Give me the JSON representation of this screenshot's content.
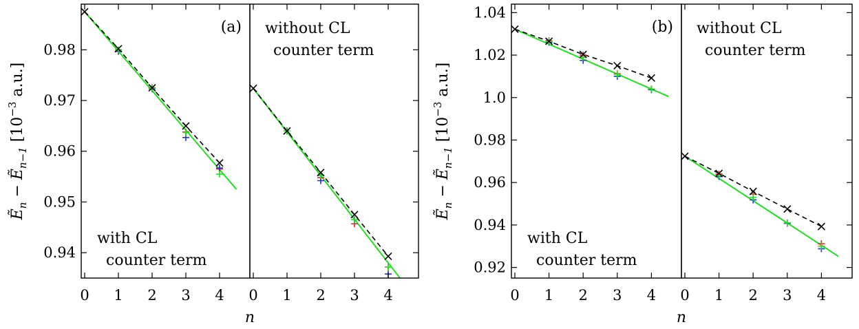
{
  "figure": {
    "ylabel": "Ẽn − Ẽn−1 [10−3 a.u.]",
    "ylabel_parts": {
      "e1": "Ẽ",
      "sub1": "n",
      "minus": " − ",
      "e2": "Ẽ",
      "sub2": "n−1",
      "units_pre": " [10",
      "exp": "−3",
      "units_post": " a.u.]"
    }
  },
  "chart_data": [
    {
      "type": "line",
      "panel_label": "(a)",
      "annotation_lines": [
        "with CL",
        "counter term"
      ],
      "xlabel": "n",
      "xlim": [
        0,
        4.5
      ],
      "ylim": [
        0.935,
        0.989
      ],
      "x_ticks": [
        0,
        1,
        2,
        3,
        4
      ],
      "y_ticks": [
        0.94,
        0.95,
        0.96,
        0.97,
        0.98
      ],
      "y_tick_labels": [
        "0.94",
        "0.95",
        "0.96",
        "0.97",
        "0.98"
      ],
      "green_fit": {
        "x": [
          0,
          4.5
        ],
        "y": [
          0.9875,
          0.9525
        ]
      },
      "series": [
        {
          "marker": "x",
          "color": "#000000",
          "dashed": true,
          "x": [
            0,
            1,
            2,
            3,
            4
          ],
          "y": [
            0.9875,
            0.9802,
            0.9725,
            0.965,
            0.9577
          ]
        },
        {
          "marker": "+",
          "color": "#e8242a",
          "x": [
            1,
            2,
            3,
            4
          ],
          "y": [
            0.9797,
            0.9725,
            0.9638,
            0.9565
          ]
        },
        {
          "marker": "+",
          "color": "#2233cc",
          "x": [
            1,
            2,
            3,
            4
          ],
          "y": [
            0.9797,
            0.9723,
            0.9627,
            0.9567
          ]
        },
        {
          "marker": "+",
          "color": "#22dd22",
          "x": [
            1,
            2,
            3,
            4
          ],
          "y": [
            0.98,
            0.9724,
            0.9637,
            0.9555
          ]
        }
      ]
    },
    {
      "type": "line",
      "annotation_lines": [
        "without CL",
        "counter term"
      ],
      "xlim": [
        0,
        4.5
      ],
      "x_ticks": [
        0,
        1,
        2,
        3,
        4
      ],
      "ylim": [
        0.935,
        0.989
      ],
      "green_fit": {
        "x": [
          0,
          4.5
        ],
        "y": [
          0.9724,
          0.9337
        ]
      },
      "series": [
        {
          "marker": "x",
          "color": "#000000",
          "dashed": true,
          "x": [
            0,
            1,
            2,
            3,
            4
          ],
          "y": [
            0.9724,
            0.964,
            0.9558,
            0.9475,
            0.9393
          ]
        },
        {
          "marker": "+",
          "color": "#e8242a",
          "x": [
            1,
            2,
            3,
            4
          ],
          "y": [
            0.964,
            0.9548,
            0.9457,
            0.9372
          ]
        },
        {
          "marker": "+",
          "color": "#2233cc",
          "x": [
            1,
            2,
            3,
            4
          ],
          "y": [
            0.964,
            0.9542,
            0.9465,
            0.9358
          ]
        },
        {
          "marker": "+",
          "color": "#22dd22",
          "x": [
            1,
            2,
            3,
            4
          ],
          "y": [
            0.964,
            0.9552,
            0.9465,
            0.9372
          ]
        }
      ]
    },
    {
      "type": "line",
      "panel_label": "(b)",
      "annotation_lines": [
        "with CL",
        "counter term"
      ],
      "xlabel": "n",
      "xlim": [
        0,
        4.5
      ],
      "x_ticks": [
        0,
        1,
        2,
        3,
        4
      ],
      "ylim": [
        0.915,
        1.044
      ],
      "y_ticks": [
        0.92,
        0.94,
        0.96,
        0.98,
        1.0,
        1.02,
        1.04
      ],
      "y_tick_labels": [
        "0.92",
        "0.94",
        "0.96",
        "0.98",
        "1.0",
        "1.02",
        "1.04"
      ],
      "green_fit": {
        "x": [
          0,
          4.5
        ],
        "y": [
          1.0322,
          1.0005
        ]
      },
      "series": [
        {
          "marker": "x",
          "color": "#000000",
          "dashed": true,
          "x": [
            0,
            1,
            2,
            3,
            4
          ],
          "y": [
            1.0322,
            1.0265,
            1.0203,
            1.015,
            1.0092
          ]
        },
        {
          "marker": "+",
          "color": "#e8242a",
          "x": [
            1,
            2,
            3,
            4
          ],
          "y": [
            1.0268,
            1.02,
            1.0112,
            1.004
          ]
        },
        {
          "marker": "+",
          "color": "#2233cc",
          "x": [
            1,
            2,
            3,
            4
          ],
          "y": [
            1.026,
            1.0175,
            1.01,
            1.0037
          ]
        },
        {
          "marker": "+",
          "color": "#22dd22",
          "x": [
            1,
            2,
            3,
            4
          ],
          "y": [
            1.0265,
            1.019,
            1.011,
            1.004
          ]
        }
      ]
    },
    {
      "type": "line",
      "annotation_lines": [
        "without CL",
        "counter term"
      ],
      "xlim": [
        0,
        4.5
      ],
      "x_ticks": [
        0,
        1,
        2,
        3,
        4
      ],
      "ylim": [
        0.915,
        1.044
      ],
      "green_fit": {
        "x": [
          0,
          4.5
        ],
        "y": [
          0.9724,
          0.9252
        ]
      },
      "series": [
        {
          "marker": "x",
          "color": "#000000",
          "dashed": true,
          "x": [
            0,
            1,
            2,
            3,
            4
          ],
          "y": [
            0.9724,
            0.9643,
            0.9558,
            0.9475,
            0.9393
          ]
        },
        {
          "marker": "+",
          "color": "#e8242a",
          "x": [
            1,
            2,
            3,
            4
          ],
          "y": [
            0.964,
            0.9545,
            0.9408,
            0.9312
          ]
        },
        {
          "marker": "+",
          "color": "#2233cc",
          "x": [
            1,
            2,
            3,
            4
          ],
          "y": [
            0.9628,
            0.9518,
            0.9408,
            0.9288
          ]
        },
        {
          "marker": "+",
          "color": "#22dd22",
          "x": [
            1,
            2,
            3,
            4
          ],
          "y": [
            0.9635,
            0.953,
            0.941,
            0.93
          ]
        }
      ]
    }
  ]
}
